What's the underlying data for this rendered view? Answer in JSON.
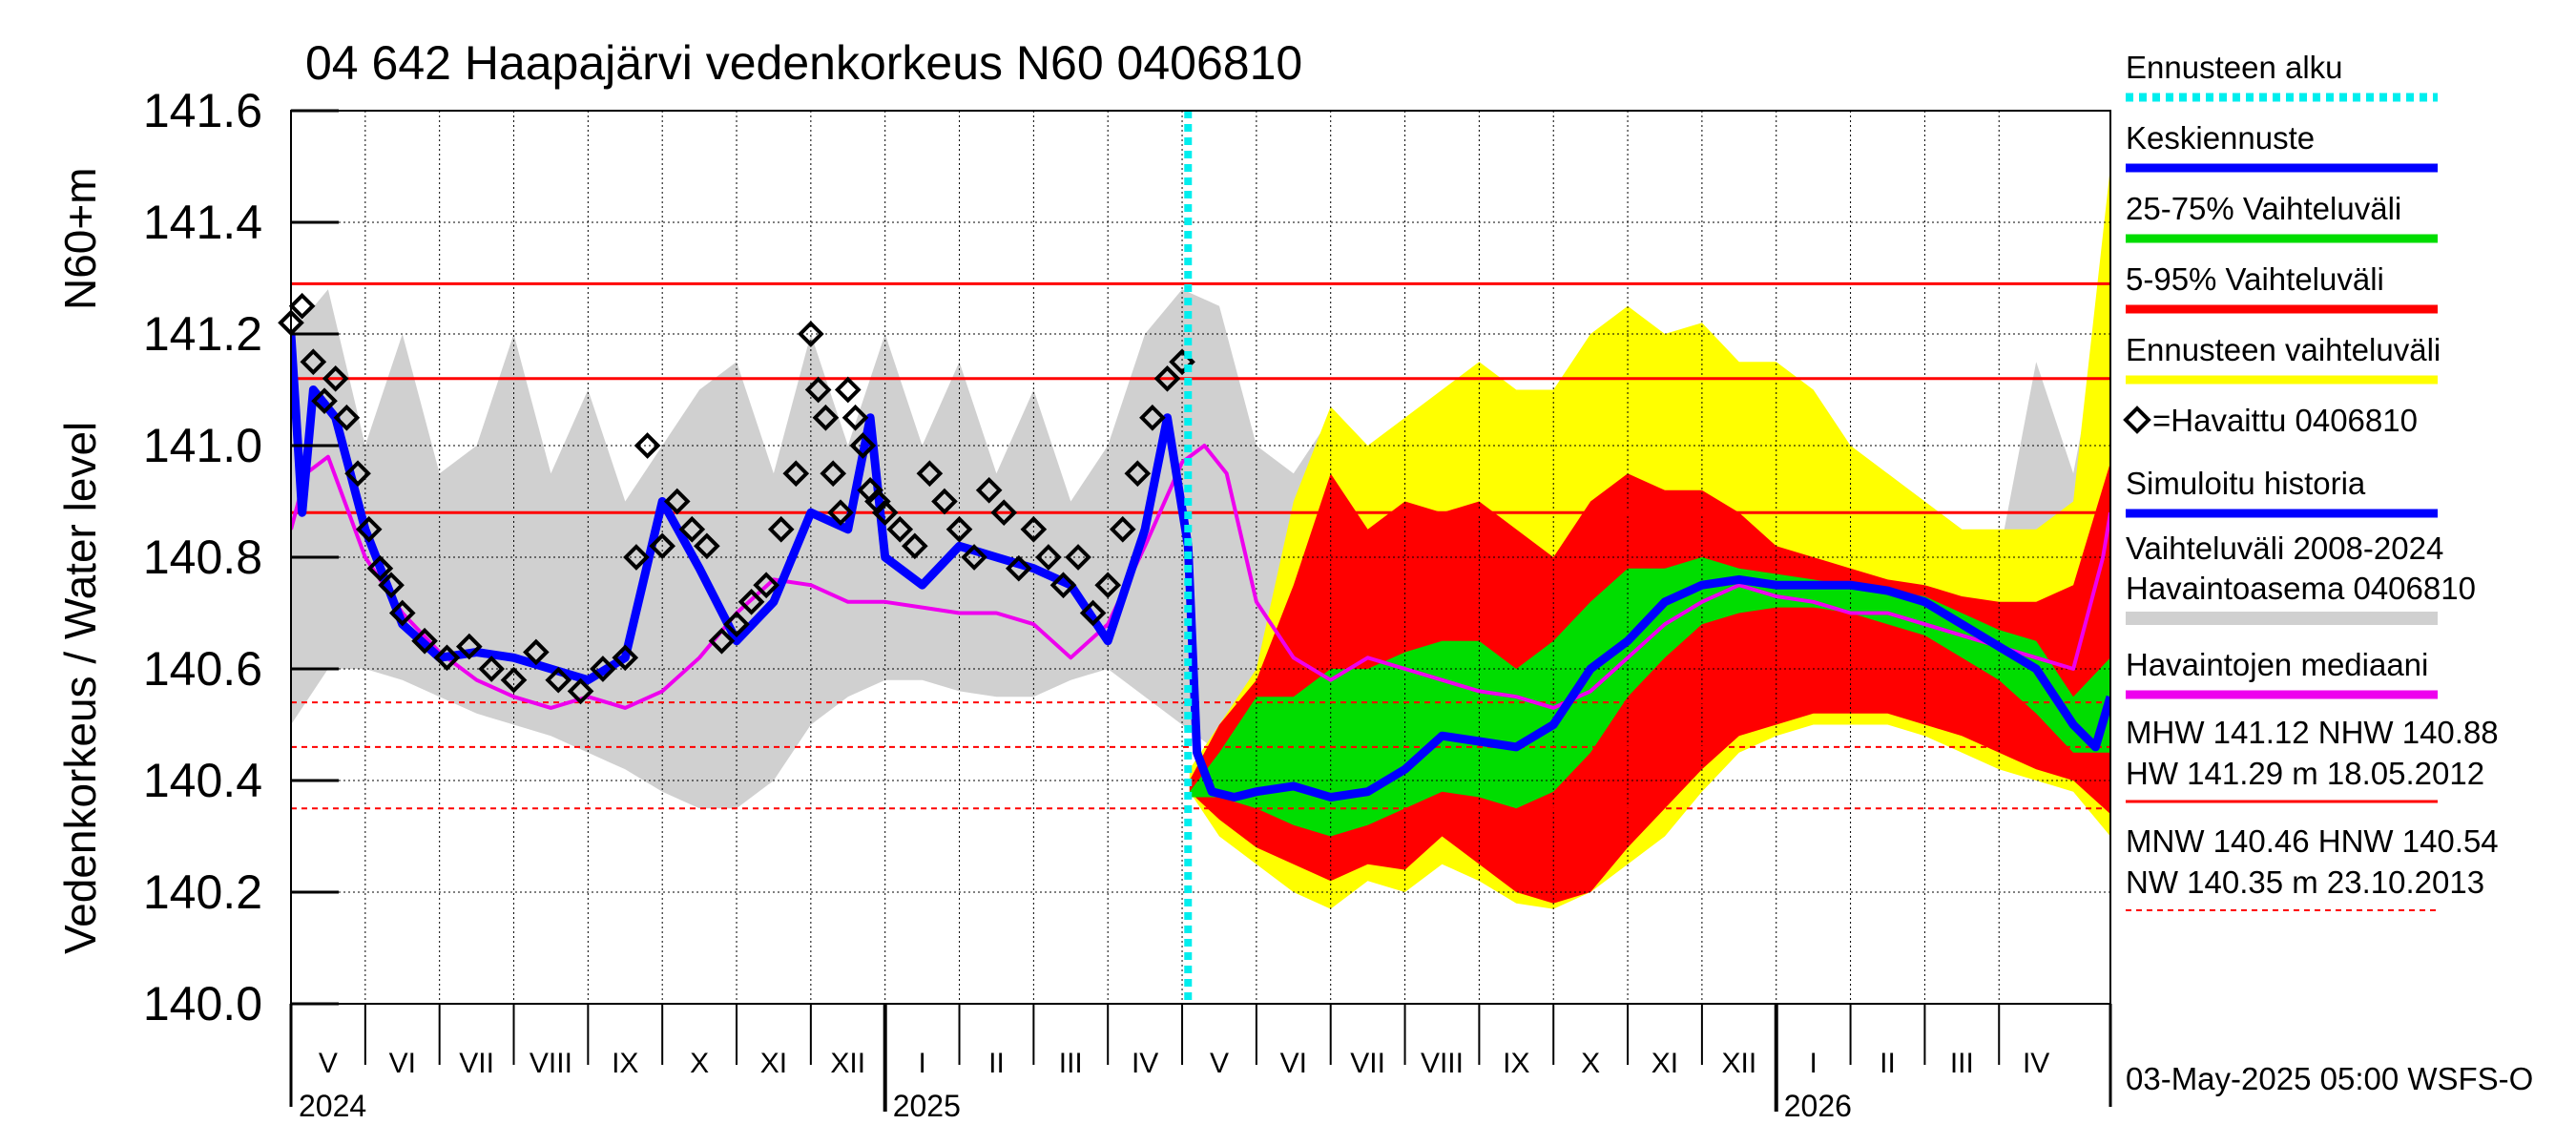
{
  "chart_data": {
    "type": "line",
    "title": "04 642 Haapajärvi vedenkorkeus N60 0406810",
    "ylabel": "Vedenkorkeus / Water level",
    "ylabel_unit": "N60+m",
    "ylim": [
      140.0,
      141.6
    ],
    "yticks": [
      "140.0",
      "140.2",
      "140.4",
      "140.6",
      "140.8",
      "141.0",
      "141.2",
      "141.4",
      "141.6"
    ],
    "xrange_months": [
      0,
      24.5
    ],
    "months": [
      "V",
      "VI",
      "VII",
      "VIII",
      "IX",
      "X",
      "XI",
      "XII",
      "I",
      "II",
      "III",
      "IV",
      "V",
      "VI",
      "VII",
      "VIII",
      "IX",
      "X",
      "XI",
      "XII",
      "I",
      "II",
      "III",
      "IV"
    ],
    "years": [
      {
        "label": "2024",
        "start": 0
      },
      {
        "label": "2025",
        "start": 8
      },
      {
        "label": "2026",
        "start": 20
      }
    ],
    "forecast_start": 12.08,
    "reference_lines": [
      {
        "name": "HW",
        "value": 141.29,
        "style": "solid"
      },
      {
        "name": "MHW",
        "value": 141.12,
        "style": "solid"
      },
      {
        "name": "NHW",
        "value": 140.88,
        "style": "solid"
      },
      {
        "name": "HNW",
        "value": 140.54,
        "style": "dashed"
      },
      {
        "name": "MNW",
        "value": 140.46,
        "style": "dashed"
      },
      {
        "name": "NW",
        "value": 140.35,
        "style": "dashed"
      }
    ],
    "series": [
      {
        "name": "Vaihteluväli 2008-2024 Havaintoasema 0406810",
        "kind": "band",
        "color": "#d0d0d0",
        "x": [
          0,
          0.5,
          1,
          1.5,
          2,
          2.5,
          3,
          3.5,
          4,
          4.5,
          5,
          5.5,
          6,
          6.5,
          7,
          7.5,
          8,
          8.5,
          9,
          9.5,
          10,
          10.5,
          11,
          11.5,
          12,
          12.5,
          13,
          13.5,
          14,
          14.5,
          15,
          15.5,
          16,
          16.5,
          17,
          17.5,
          18,
          18.5,
          19,
          19.5,
          20,
          20.5,
          21,
          21.5,
          22,
          22.5,
          23,
          23.5,
          24,
          24.5
        ],
        "upper": [
          141.2,
          141.28,
          141.0,
          141.2,
          140.95,
          141.0,
          141.2,
          140.95,
          141.1,
          140.9,
          141.0,
          141.1,
          141.15,
          140.95,
          141.2,
          141.0,
          141.2,
          141.0,
          141.15,
          140.95,
          141.1,
          140.9,
          141.0,
          141.2,
          141.28,
          141.25,
          141.0,
          140.95,
          141.05,
          140.9,
          140.95,
          140.95,
          140.9,
          140.95,
          141.1,
          140.9,
          140.85,
          141.0,
          141.2,
          140.95,
          140.9,
          141.05,
          140.9,
          140.95,
          140.9,
          140.85,
          140.8,
          141.15,
          140.95,
          141.3
        ],
        "lower": [
          140.5,
          140.6,
          140.6,
          140.58,
          140.55,
          140.52,
          140.5,
          140.48,
          140.45,
          140.42,
          140.38,
          140.35,
          140.35,
          140.4,
          140.5,
          140.55,
          140.58,
          140.58,
          140.56,
          140.55,
          140.55,
          140.58,
          140.6,
          140.55,
          140.5,
          140.45,
          140.42,
          140.4,
          140.38,
          140.36,
          140.35,
          140.4,
          140.45,
          140.45,
          140.42,
          140.45,
          140.48,
          140.52,
          140.55,
          140.56,
          140.55,
          140.55,
          140.55,
          140.56,
          140.56,
          140.55,
          140.5,
          140.45,
          140.42,
          140.42
        ]
      },
      {
        "name": "Ennusteen vaihteluväli",
        "kind": "band",
        "color": "#ffff00",
        "x": [
          12.1,
          12.5,
          13,
          13.5,
          14,
          14.5,
          15,
          15.5,
          16,
          16.5,
          17,
          17.5,
          18,
          18.5,
          19,
          19.5,
          20,
          20.5,
          21,
          21.5,
          22,
          22.5,
          23,
          23.5,
          24,
          24.5
        ],
        "upper": [
          140.42,
          140.5,
          140.6,
          140.9,
          141.07,
          141.0,
          141.05,
          141.1,
          141.15,
          141.1,
          141.1,
          141.2,
          141.25,
          141.2,
          141.22,
          141.15,
          141.15,
          141.1,
          141.0,
          140.95,
          140.9,
          140.85,
          140.85,
          140.85,
          140.9,
          141.5
        ],
        "lower": [
          140.38,
          140.3,
          140.25,
          140.2,
          140.17,
          140.22,
          140.2,
          140.25,
          140.22,
          140.18,
          140.17,
          140.2,
          140.25,
          140.3,
          140.38,
          140.45,
          140.48,
          140.5,
          140.5,
          140.5,
          140.48,
          140.45,
          140.42,
          140.4,
          140.38,
          140.3
        ]
      },
      {
        "name": "5-95% Vaihteluväli",
        "kind": "band",
        "color": "#ff0000",
        "x": [
          12.1,
          12.5,
          13,
          13.5,
          14,
          14.5,
          15,
          15.5,
          16,
          16.5,
          17,
          17.5,
          18,
          18.5,
          19,
          19.5,
          20,
          20.5,
          21,
          21.5,
          22,
          22.5,
          23,
          23.5,
          24,
          24.5
        ],
        "upper": [
          140.4,
          140.5,
          140.58,
          140.75,
          140.95,
          140.85,
          140.9,
          140.88,
          140.9,
          140.85,
          140.8,
          140.9,
          140.95,
          140.92,
          140.92,
          140.88,
          140.82,
          140.8,
          140.78,
          140.76,
          140.75,
          140.73,
          140.72,
          140.72,
          140.75,
          140.97
        ],
        "lower": [
          140.38,
          140.33,
          140.28,
          140.25,
          140.22,
          140.25,
          140.24,
          140.3,
          140.25,
          140.2,
          140.18,
          140.2,
          140.28,
          140.35,
          140.42,
          140.48,
          140.5,
          140.52,
          140.52,
          140.52,
          140.5,
          140.48,
          140.45,
          140.42,
          140.4,
          140.34
        ]
      },
      {
        "name": "25-75% Vaihteluväli",
        "kind": "band",
        "color": "#00dd00",
        "x": [
          12.1,
          12.5,
          13,
          13.5,
          14,
          14.5,
          15,
          15.5,
          16,
          16.5,
          17,
          17.5,
          18,
          18.5,
          19,
          19.5,
          20,
          20.5,
          21,
          21.5,
          22,
          22.5,
          23,
          23.5,
          24,
          24.5
        ],
        "upper": [
          140.38,
          140.45,
          140.55,
          140.55,
          140.6,
          140.6,
          140.63,
          140.65,
          140.65,
          140.6,
          140.65,
          140.72,
          140.78,
          140.78,
          140.8,
          140.78,
          140.77,
          140.76,
          140.75,
          140.74,
          140.73,
          140.7,
          140.67,
          140.65,
          140.55,
          140.62
        ],
        "lower": [
          140.37,
          140.37,
          140.35,
          140.32,
          140.3,
          140.32,
          140.35,
          140.38,
          140.37,
          140.35,
          140.38,
          140.45,
          140.55,
          140.62,
          140.68,
          140.7,
          140.71,
          140.71,
          140.7,
          140.68,
          140.66,
          140.62,
          140.58,
          140.52,
          140.45,
          140.45
        ]
      },
      {
        "name": "Havaintojen mediaani",
        "kind": "line",
        "color": "#ee00ee",
        "x": [
          0,
          0.2,
          0.5,
          1,
          1.5,
          2,
          2.5,
          3,
          3.5,
          4,
          4.5,
          5,
          5.5,
          6,
          6.5,
          7,
          7.5,
          8,
          8.5,
          9,
          9.5,
          10,
          10.5,
          11,
          11.5,
          12,
          12.3,
          12.6,
          13,
          13.5,
          14,
          14.5,
          15,
          15.5,
          16,
          16.5,
          17,
          17.5,
          18,
          18.5,
          19,
          19.5,
          20,
          20.5,
          21,
          21.5,
          22,
          22.5,
          23,
          23.5,
          24,
          24.4,
          24.5
        ],
        "y": [
          140.85,
          140.95,
          140.98,
          140.8,
          140.7,
          140.63,
          140.58,
          140.55,
          140.53,
          140.55,
          140.53,
          140.56,
          140.62,
          140.7,
          140.76,
          140.75,
          140.72,
          140.72,
          140.71,
          140.7,
          140.7,
          140.68,
          140.62,
          140.68,
          140.82,
          140.97,
          141.0,
          140.95,
          140.72,
          140.62,
          140.58,
          140.62,
          140.6,
          140.58,
          140.56,
          140.55,
          140.53,
          140.56,
          140.62,
          140.68,
          140.72,
          140.75,
          140.73,
          140.72,
          140.7,
          140.7,
          140.68,
          140.66,
          140.64,
          140.62,
          140.6,
          140.8,
          140.88
        ]
      },
      {
        "name": "Simuloitu historia",
        "kind": "line",
        "color": "#0000ff",
        "x": [
          0,
          0.15,
          0.3,
          0.6,
          1,
          1.5,
          2,
          2.5,
          3,
          3.5,
          4,
          4.5,
          5,
          5.5,
          6,
          6.5,
          7,
          7.5,
          7.8,
          8,
          8.5,
          9,
          9.5,
          10,
          10.5,
          11,
          11.5,
          11.8,
          12.08
        ],
        "y": [
          141.2,
          140.88,
          141.1,
          141.05,
          140.85,
          140.68,
          140.62,
          140.63,
          140.62,
          140.6,
          140.58,
          140.62,
          140.9,
          140.78,
          140.65,
          140.72,
          140.88,
          140.85,
          141.05,
          140.8,
          140.75,
          140.82,
          140.8,
          140.78,
          140.75,
          140.65,
          140.85,
          141.05,
          140.82
        ]
      },
      {
        "name": "Keskiennuste",
        "kind": "line",
        "color": "#0000ff",
        "x": [
          12.08,
          12.2,
          12.4,
          12.7,
          13,
          13.5,
          14,
          14.5,
          15,
          15.5,
          16,
          16.5,
          17,
          17.5,
          18,
          18.5,
          19,
          19.5,
          20,
          20.5,
          21,
          21.5,
          22,
          22.5,
          23,
          23.5,
          24,
          24.3,
          24.5
        ],
        "y": [
          140.82,
          140.45,
          140.38,
          140.37,
          140.38,
          140.39,
          140.37,
          140.38,
          140.42,
          140.48,
          140.47,
          140.46,
          140.5,
          140.6,
          140.65,
          140.72,
          140.75,
          140.76,
          140.75,
          140.75,
          140.75,
          140.74,
          140.72,
          140.68,
          140.64,
          140.6,
          140.5,
          140.46,
          140.55
        ]
      },
      {
        "name": "Havaittu 0406810",
        "kind": "markers",
        "color": "#000000",
        "x": [
          0,
          0.15,
          0.3,
          0.45,
          0.6,
          0.75,
          0.9,
          1.05,
          1.2,
          1.35,
          1.5,
          1.8,
          2.1,
          2.4,
          2.7,
          3.0,
          3.3,
          3.6,
          3.9,
          4.2,
          4.5,
          4.65,
          4.8,
          5.0,
          5.2,
          5.4,
          5.6,
          5.8,
          6.0,
          6.2,
          6.4,
          6.6,
          6.8,
          7.0,
          7.1,
          7.2,
          7.3,
          7.4,
          7.5,
          7.6,
          7.7,
          7.8,
          7.9,
          8.0,
          8.2,
          8.4,
          8.6,
          8.8,
          9.0,
          9.2,
          9.4,
          9.6,
          9.8,
          10.0,
          10.2,
          10.4,
          10.6,
          10.8,
          11.0,
          11.2,
          11.4,
          11.6,
          11.8,
          12.0
        ],
        "y": [
          141.22,
          141.25,
          141.15,
          141.08,
          141.12,
          141.05,
          140.95,
          140.85,
          140.78,
          140.75,
          140.7,
          140.65,
          140.62,
          140.64,
          140.6,
          140.58,
          140.63,
          140.58,
          140.56,
          140.6,
          140.62,
          140.8,
          141.0,
          140.82,
          140.9,
          140.85,
          140.82,
          140.65,
          140.68,
          140.72,
          140.75,
          140.85,
          140.95,
          141.2,
          141.1,
          141.05,
          140.95,
          140.88,
          141.1,
          141.05,
          141.0,
          140.92,
          140.9,
          140.88,
          140.85,
          140.82,
          140.95,
          140.9,
          140.85,
          140.8,
          140.92,
          140.88,
          140.78,
          140.85,
          140.8,
          140.75,
          140.8,
          140.7,
          140.75,
          140.85,
          140.95,
          141.05,
          141.12,
          141.15
        ]
      }
    ],
    "legend": [
      {
        "label": "Ennusteen alku",
        "color": "#00eeee",
        "style": "dotted"
      },
      {
        "label": "Keskiennuste",
        "color": "#0000ff",
        "style": "line"
      },
      {
        "label": "25-75% Vaihteluväli",
        "color": "#00dd00",
        "style": "line"
      },
      {
        "label": "5-95% Vaihteluväli",
        "color": "#ff0000",
        "style": "line"
      },
      {
        "label": "Ennusteen vaihteluväli",
        "color": "#ffff00",
        "style": "line"
      },
      {
        "label": "=Havaittu 0406810",
        "color": "#000000",
        "style": "marker"
      },
      {
        "label": "Simuloitu historia",
        "color": "#0000ff",
        "style": "line"
      },
      {
        "label": "Vaihteluväli 2008-2024",
        "label2": " Havaintoasema 0406810",
        "color": "#d0d0d0",
        "style": "line"
      },
      {
        "label": "Havaintojen mediaani",
        "color": "#ee00ee",
        "style": "line"
      }
    ],
    "stats": {
      "line1": "MHW 141.12 NHW 140.88",
      "line2": "HW 141.29 m 18.05.2012",
      "line3": "MNW 140.46 HNW 140.54",
      "line4": "NW 140.35 m 23.10.2013"
    },
    "footer": "03-May-2025 05:00 WSFS-O"
  }
}
